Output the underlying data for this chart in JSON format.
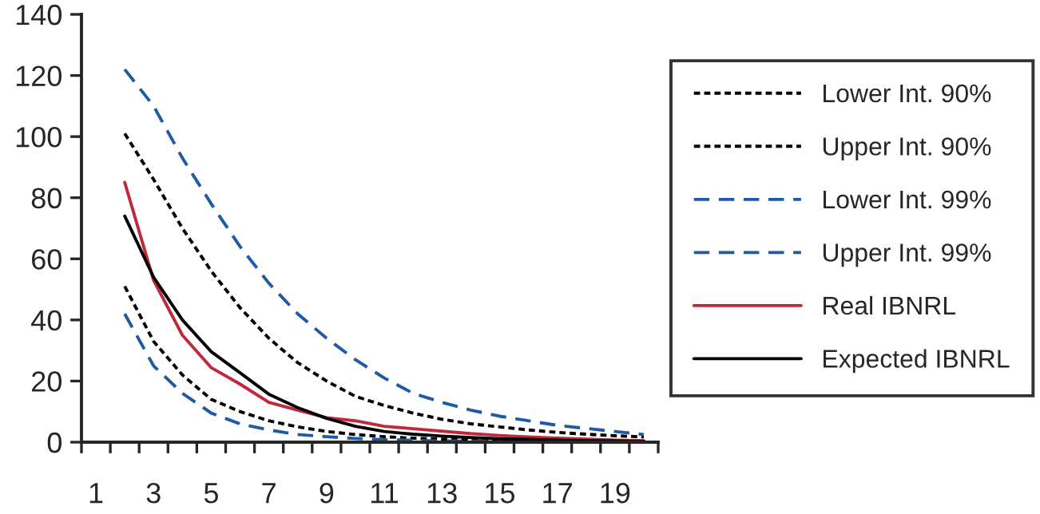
{
  "chart_data": {
    "type": "line",
    "categories": [
      "1",
      null,
      "3",
      null,
      "5",
      null,
      "7",
      null,
      "9",
      null,
      "11",
      null,
      "13",
      null,
      "15",
      null,
      "17",
      null,
      "19",
      null
    ],
    "series": [
      {
        "name": "Lower Int. 90%",
        "color": "#000000",
        "line_style": "dotted",
        "values": [
          null,
          51,
          33,
          22,
          14,
          10,
          7,
          5,
          3.5,
          2.5,
          1.8,
          1.3,
          1,
          0.8,
          0.6,
          0.5,
          0.4,
          0.3,
          0.3,
          0.2
        ]
      },
      {
        "name": "Upper Int. 90%",
        "color": "#000000",
        "line_style": "dotted",
        "values": [
          null,
          101,
          86,
          70,
          56,
          44,
          34,
          26,
          20,
          15,
          12,
          9.5,
          7.5,
          6,
          5,
          4,
          3.2,
          2.6,
          2.1,
          1.7
        ]
      },
      {
        "name": "Lower Int. 99%",
        "color": "#1f5aa6",
        "line_style": "dashed",
        "values": [
          null,
          42,
          25,
          16,
          9.5,
          6,
          4,
          2.5,
          1.8,
          1.2,
          0.8,
          0.6,
          0.4,
          0.3,
          0.2,
          0.2,
          0.1,
          0.1,
          0.1,
          0.1
        ]
      },
      {
        "name": "Upper Int. 99%",
        "color": "#1f5aa6",
        "line_style": "dashed",
        "values": [
          null,
          122,
          110,
          93,
          78,
          64,
          52,
          42,
          34,
          27,
          21,
          16,
          13,
          10.5,
          8.5,
          7,
          5.5,
          4.5,
          3.5,
          2.5
        ]
      },
      {
        "name": "Real IBNRL",
        "color": "#c0283c",
        "line_style": "solid",
        "values": [
          null,
          85,
          53,
          35,
          24.4,
          19,
          13,
          10.5,
          8,
          7,
          5.2,
          4.4,
          3.6,
          2.8,
          2.2,
          1.7,
          1.3,
          1,
          0.7,
          0.5
        ]
      },
      {
        "name": "Expected IBNRL",
        "color": "#000000",
        "line_style": "solid",
        "values": [
          null,
          74,
          54,
          40,
          29.6,
          22.7,
          15.7,
          11.3,
          7.8,
          5.2,
          3.5,
          2.6,
          2,
          1.5,
          1.1,
          0.9,
          0.7,
          0.5,
          0.4,
          0.3
        ]
      }
    ],
    "ylim": [
      0,
      140
    ],
    "yticks": [
      0,
      20,
      40,
      60,
      80,
      100,
      120,
      140
    ],
    "legend": "right",
    "grid": false
  }
}
